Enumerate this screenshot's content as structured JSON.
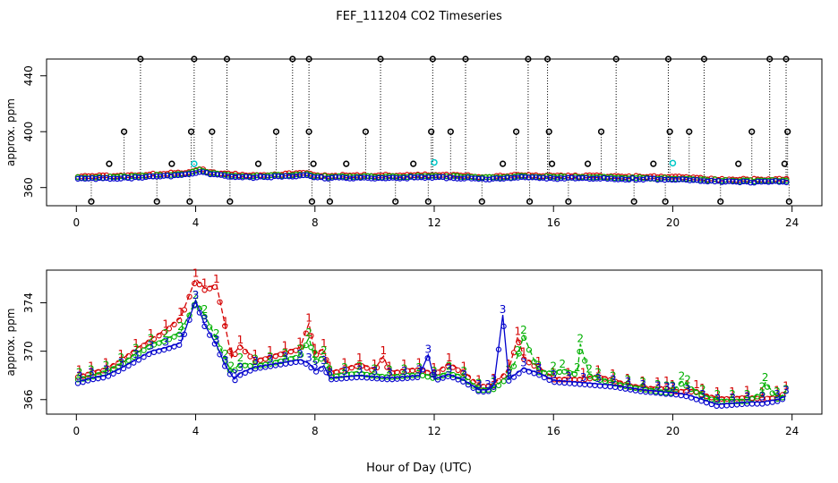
{
  "title": "FEF_111204  CO2 Timeseries",
  "xlabel": "Hour of Day (UTC)",
  "colors": {
    "s1": "#d40000",
    "s2": "#00b000",
    "s3": "#0000cc",
    "raw": "#000000",
    "cyan": "#00c8c8"
  },
  "chart_data": [
    {
      "type": "scatter",
      "name": "top-panel",
      "ylabel": "approx. ppm",
      "xlim": [
        -1,
        25
      ],
      "ylim": [
        347,
        452
      ],
      "xticks": [
        0,
        4,
        8,
        12,
        16,
        20,
        24
      ],
      "xtick_labels": [
        "0",
        "4",
        "8",
        "12",
        "16",
        "20",
        "24"
      ],
      "yticks": [
        360,
        400,
        440
      ],
      "ytick_labels": [
        "360",
        "400",
        "440"
      ],
      "baseline": [
        [
          0,
          366.5
        ],
        [
          1,
          366.8
        ],
        [
          2,
          367.3
        ],
        [
          3,
          368.5
        ],
        [
          3.8,
          369.5
        ],
        [
          4.1,
          372
        ],
        [
          4.5,
          369.5
        ],
        [
          5,
          368.5
        ],
        [
          5.5,
          367.8
        ],
        [
          6,
          367.6
        ],
        [
          7,
          368.2
        ],
        [
          7.7,
          368.9
        ],
        [
          8,
          367.3
        ],
        [
          9,
          367.1
        ],
        [
          10,
          367.2
        ],
        [
          11,
          367.3
        ],
        [
          11.9,
          367.6
        ],
        [
          12,
          367.5
        ],
        [
          13,
          367.1
        ],
        [
          13.7,
          366.3
        ],
        [
          14.5,
          367
        ],
        [
          15,
          367.4
        ],
        [
          15.8,
          367
        ],
        [
          16,
          366.9
        ],
        [
          17,
          366.8
        ],
        [
          18,
          366.6
        ],
        [
          19,
          366.3
        ],
        [
          19.8,
          366.2
        ],
        [
          20,
          366.1
        ],
        [
          21,
          365
        ],
        [
          22,
          364.3
        ],
        [
          23,
          364.2
        ],
        [
          23.8,
          364.6
        ]
      ],
      "spikes_high": [
        2.15,
        3.95,
        5.05,
        7.25,
        7.8,
        10.2,
        11.95,
        13.05,
        15.15,
        15.8,
        18.1,
        19.85,
        21.05,
        23.25,
        23.8
      ],
      "spikes_mid": [
        1.6,
        3.85,
        4.55,
        6.7,
        7.8,
        9.7,
        11.9,
        12.55,
        14.75,
        15.85,
        17.6,
        19.9,
        20.55,
        22.65,
        23.85
      ],
      "spikes_low": [
        0.5,
        2.7,
        3.8,
        5.15,
        7.9,
        8.5,
        10.7,
        11.8,
        13.6,
        15.2,
        16.5,
        18.7,
        19.75,
        21.6,
        23.9
      ],
      "small_marks": [
        1.1,
        3.2,
        6.1,
        7.95,
        9.05,
        11.3,
        14.3,
        15.95,
        17.15,
        19.35,
        22.2,
        23.75
      ],
      "cyan_marks": [
        [
          3.95,
          377
        ],
        [
          12,
          378
        ],
        [
          20,
          377.5
        ]
      ],
      "value_spike_top": 452,
      "value_spike_mid": 400,
      "value_spike_low": 350,
      "value_small_mark": 377
    },
    {
      "type": "line",
      "name": "bottom-panel",
      "ylabel": "approx. ppm",
      "xlim": [
        -1,
        25
      ],
      "ylim": [
        364.8,
        376.7
      ],
      "xticks": [
        0,
        4,
        8,
        12,
        16,
        20,
        24
      ],
      "xtick_labels": [
        "0",
        "4",
        "8",
        "12",
        "16",
        "20",
        "24"
      ],
      "yticks": [
        366,
        370,
        374
      ],
      "ytick_labels": [
        "366",
        "370",
        "374"
      ],
      "series": [
        {
          "name": "1",
          "label": "1",
          "points": [
            [
              0.1,
              368
            ],
            [
              0.5,
              368.3
            ],
            [
              1,
              368.6
            ],
            [
              1.5,
              369.3
            ],
            [
              2,
              370.2
            ],
            [
              2.5,
              371
            ],
            [
              3,
              371.8
            ],
            [
              3.5,
              372.8
            ],
            [
              4,
              376
            ],
            [
              4.3,
              375.2
            ],
            [
              4.7,
              375.5
            ],
            [
              5,
              372
            ],
            [
              5.2,
              369.5
            ],
            [
              5.5,
              370.5
            ],
            [
              6,
              369.3
            ],
            [
              6.5,
              369.6
            ],
            [
              7,
              370
            ],
            [
              7.5,
              370.3
            ],
            [
              7.8,
              372.3
            ],
            [
              8,
              369.8
            ],
            [
              8.3,
              370.2
            ],
            [
              8.5,
              368.3
            ],
            [
              9,
              368.6
            ],
            [
              9.5,
              369
            ],
            [
              10,
              368.5
            ],
            [
              10.3,
              369.6
            ],
            [
              10.5,
              368.3
            ],
            [
              11,
              368.5
            ],
            [
              11.5,
              368.6
            ],
            [
              12,
              368.2
            ],
            [
              12.5,
              369
            ],
            [
              13,
              368.3
            ],
            [
              13.5,
              367.2
            ],
            [
              14,
              367.3
            ],
            [
              14.5,
              368.5
            ],
            [
              14.8,
              371.2
            ],
            [
              15,
              369.5
            ],
            [
              15.5,
              368.7
            ],
            [
              16,
              367.8
            ],
            [
              16.5,
              367.8
            ],
            [
              17,
              367.8
            ],
            [
              17.5,
              368
            ],
            [
              18,
              367.7
            ],
            [
              18.5,
              367.3
            ],
            [
              19,
              367.1
            ],
            [
              19.5,
              367
            ],
            [
              19.8,
              367.1
            ],
            [
              20,
              366.8
            ],
            [
              20.5,
              366.8
            ],
            [
              20.8,
              366.8
            ],
            [
              21,
              366.5
            ],
            [
              21.5,
              366.2
            ],
            [
              22,
              366.2
            ],
            [
              22.5,
              366.3
            ],
            [
              23,
              366.2
            ],
            [
              23.5,
              366.3
            ],
            [
              23.8,
              366.7
            ]
          ]
        },
        {
          "name": "2",
          "label": "2",
          "points": [
            [
              0.1,
              367.8
            ],
            [
              0.5,
              368
            ],
            [
              1,
              368.4
            ],
            [
              1.5,
              369
            ],
            [
              2,
              369.8
            ],
            [
              2.5,
              370.6
            ],
            [
              3,
              371
            ],
            [
              3.5,
              371.6
            ],
            [
              4,
              374.2
            ],
            [
              4.3,
              373
            ],
            [
              4.7,
              371
            ],
            [
              5,
              369.3
            ],
            [
              5.2,
              368.3
            ],
            [
              5.5,
              369
            ],
            [
              6,
              368.9
            ],
            [
              6.5,
              369.1
            ],
            [
              7,
              369.4
            ],
            [
              7.5,
              369.7
            ],
            [
              7.8,
              371.1
            ],
            [
              8,
              369.3
            ],
            [
              8.3,
              369.6
            ],
            [
              8.5,
              368
            ],
            [
              9,
              368.2
            ],
            [
              9.5,
              368.3
            ],
            [
              10,
              368.1
            ],
            [
              10.5,
              368
            ],
            [
              11,
              368.1
            ],
            [
              11.5,
              368.2
            ],
            [
              12,
              367.9
            ],
            [
              12.5,
              368.3
            ],
            [
              13,
              367.9
            ],
            [
              13.5,
              366.9
            ],
            [
              14,
              367
            ],
            [
              14.5,
              368
            ],
            [
              14.8,
              369.6
            ],
            [
              15,
              371.3
            ],
            [
              15.5,
              368.4
            ],
            [
              16,
              368.3
            ],
            [
              16.3,
              368.5
            ],
            [
              16.8,
              368.2
            ],
            [
              16.9,
              370.6
            ],
            [
              17.2,
              368.1
            ],
            [
              17.5,
              367.8
            ],
            [
              18,
              367.5
            ],
            [
              18.5,
              367.2
            ],
            [
              19,
              367
            ],
            [
              19.5,
              366.8
            ],
            [
              19.8,
              366.7
            ],
            [
              20,
              366.7
            ],
            [
              20.3,
              367.5
            ],
            [
              20.5,
              367.2
            ],
            [
              21,
              366.4
            ],
            [
              21.5,
              366
            ],
            [
              22,
              366
            ],
            [
              22.5,
              366
            ],
            [
              23,
              366.6
            ],
            [
              23.1,
              367.4
            ],
            [
              23.5,
              366.2
            ],
            [
              23.8,
              366.4
            ]
          ]
        },
        {
          "name": "3",
          "label": "3",
          "points": [
            [
              0.1,
              367.5
            ],
            [
              0.5,
              367.8
            ],
            [
              1,
              368
            ],
            [
              1.5,
              368.6
            ],
            [
              2,
              369.3
            ],
            [
              2.5,
              370
            ],
            [
              3,
              370.3
            ],
            [
              3.5,
              370.7
            ],
            [
              4,
              374.2
            ],
            [
              4.3,
              372.2
            ],
            [
              4.7,
              370.5
            ],
            [
              5,
              368.8
            ],
            [
              5.3,
              367.7
            ],
            [
              5.5,
              368.2
            ],
            [
              6,
              368.7
            ],
            [
              6.5,
              368.9
            ],
            [
              7,
              369.1
            ],
            [
              7.5,
              369.3
            ],
            [
              7.8,
              369
            ],
            [
              8,
              368.4
            ],
            [
              8.3,
              368.8
            ],
            [
              8.5,
              367.8
            ],
            [
              9,
              367.9
            ],
            [
              9.5,
              368
            ],
            [
              10,
              367.9
            ],
            [
              10.5,
              367.8
            ],
            [
              11,
              367.9
            ],
            [
              11.5,
              368
            ],
            [
              11.8,
              369.7
            ],
            [
              12,
              367.7
            ],
            [
              12.5,
              368.1
            ],
            [
              13,
              367.6
            ],
            [
              13.5,
              366.8
            ],
            [
              13.8,
              366.8
            ],
            [
              14,
              367.2
            ],
            [
              14.3,
              373
            ],
            [
              14.5,
              367.7
            ],
            [
              15,
              368.6
            ],
            [
              15.5,
              368.2
            ],
            [
              16,
              367.6
            ],
            [
              16.5,
              367.5
            ],
            [
              17,
              367.4
            ],
            [
              17.5,
              367.3
            ],
            [
              18,
              367.2
            ],
            [
              18.5,
              367
            ],
            [
              19,
              366.8
            ],
            [
              19.5,
              366.7
            ],
            [
              19.8,
              366.6
            ],
            [
              20,
              366.6
            ],
            [
              20.5,
              366.4
            ],
            [
              21,
              366
            ],
            [
              21.5,
              365.6
            ],
            [
              22,
              365.7
            ],
            [
              22.5,
              365.8
            ],
            [
              23,
              365.8
            ],
            [
              23.5,
              366
            ],
            [
              23.8,
              366.3
            ]
          ]
        }
      ]
    }
  ]
}
